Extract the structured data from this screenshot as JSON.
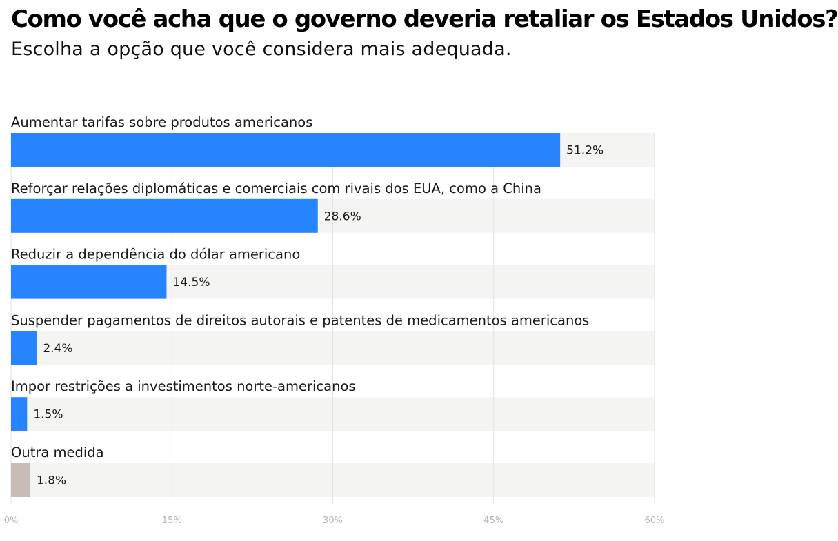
{
  "chart_data": {
    "type": "bar",
    "orientation": "horizontal",
    "title": "Como você acha que o governo deveria retaliar os Estados Unidos?",
    "subtitle": "Escolha a opção que você considera mais adequada.",
    "categories": [
      "Aumentar tarifas sobre produtos americanos",
      "Reforçar relações diplomáticas e comerciais com rivais dos EUA, como a China",
      "Reduzir a dependência do dólar americano",
      "Suspender pagamentos de direitos autorais e patentes de medicamentos americanos",
      "Impor restrições a investimentos norte-americanos",
      "Outra medida"
    ],
    "values": [
      51.2,
      28.6,
      14.5,
      2.4,
      1.5,
      1.8
    ],
    "value_labels": [
      "51.2%",
      "28.6%",
      "14.5%",
      "2.4%",
      "1.5%",
      "1.8%"
    ],
    "bar_colors": [
      "#2684ff",
      "#2684ff",
      "#2684ff",
      "#2684ff",
      "#2684ff",
      "#c8bdb6"
    ],
    "track_color": "#f4f4f2",
    "xlim": [
      0,
      60
    ],
    "xticks": [
      0,
      15,
      30,
      45,
      60
    ],
    "xtick_labels": [
      "0%",
      "15%",
      "30%",
      "45%",
      "60%"
    ],
    "grid": true,
    "xlabel": "",
    "ylabel": ""
  }
}
